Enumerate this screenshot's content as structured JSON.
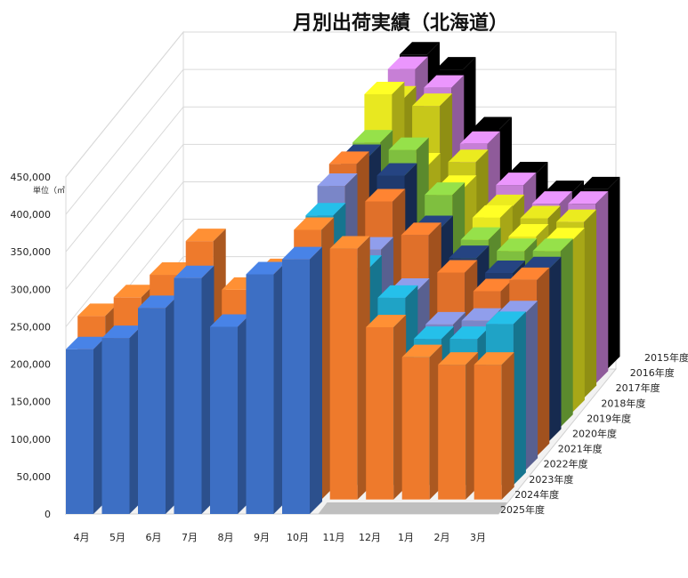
{
  "chart_data": {
    "type": "bar",
    "subtype": "3d-column",
    "title": "月別出荷実績（北海道）",
    "unit_label": "単位（㎥）",
    "categories": [
      "4月",
      "5月",
      "6月",
      "7月",
      "8月",
      "9月",
      "10月",
      "11月",
      "12月",
      "1月",
      "2月",
      "3月"
    ],
    "y_ticks": [
      "450,000",
      "400,000",
      "350,000",
      "300,000",
      "250,000",
      "200,000",
      "150,000",
      "100,000",
      "50,000",
      "0"
    ],
    "ylim": [
      0,
      450000
    ],
    "series": [
      {
        "name": "2015年度",
        "color": "#000000",
        "values": [
          null,
          null,
          null,
          null,
          null,
          null,
          420000,
          400000,
          320000,
          260000,
          235000,
          240000
        ]
      },
      {
        "name": "2016年度",
        "color": "#c77fd6",
        "values": [
          null,
          null,
          null,
          null,
          null,
          null,
          420000,
          395000,
          320000,
          265000,
          240000,
          240000
        ]
      },
      {
        "name": "2017年度",
        "color": "#c7c71a",
        "values": [
          null,
          null,
          null,
          null,
          null,
          null,
          400000,
          390000,
          315000,
          255000,
          240000,
          235000
        ]
      },
      {
        "name": "2018年度",
        "color": "#e8e820",
        "values": [
          null,
          null,
          null,
          null,
          null,
          null,
          425000,
          330000,
          300000,
          260000,
          235000,
          230000
        ]
      },
      {
        "name": "2019年度",
        "color": "#7fbf3f",
        "values": [
          null,
          null,
          null,
          null,
          null,
          null,
          380000,
          370000,
          310000,
          250000,
          235000,
          235000
        ]
      },
      {
        "name": "2020年度",
        "color": "#1f3a6e",
        "values": [
          null,
          null,
          null,
          null,
          null,
          null,
          380000,
          355000,
          285000,
          245000,
          225000,
          230000
        ]
      },
      {
        "name": "2021年度",
        "color": "#e0702a",
        "values": [
          null,
          null,
          null,
          null,
          null,
          null,
          390000,
          340000,
          295000,
          245000,
          220000,
          235000
        ]
      },
      {
        "name": "2022年度",
        "color": "#7a86c8",
        "values": [
          null,
          null,
          null,
          null,
          null,
          null,
          380000,
          295000,
          240000,
          195000,
          200000,
          210000
        ]
      },
      {
        "name": "2023年度",
        "color": "#1fa3c6",
        "values": [
          null,
          null,
          null,
          null,
          null,
          null,
          360000,
          290000,
          250000,
          195000,
          195000,
          215000
        ]
      },
      {
        "name": "2024年度",
        "color": "#ee7a2c",
        "values": [
          245000,
          270000,
          300000,
          345000,
          280000,
          305000,
          360000,
          335000,
          230000,
          190000,
          180000,
          180000
        ]
      },
      {
        "name": "2025年度",
        "color": "#3d6fc4",
        "values": [
          220000,
          235000,
          275000,
          315000,
          250000,
          320000,
          340000,
          null,
          null,
          null,
          null,
          null
        ]
      }
    ],
    "legend": "right-depth-axis",
    "grid": true
  }
}
